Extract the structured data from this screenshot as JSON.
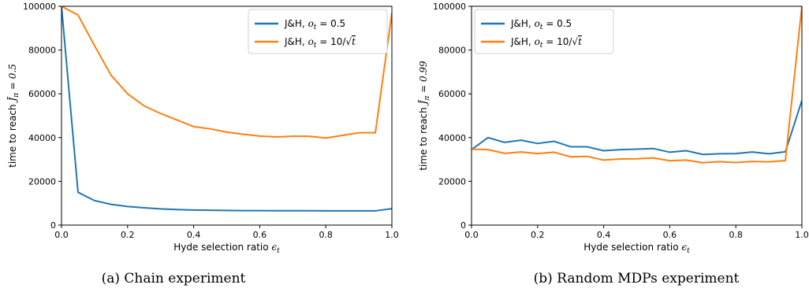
{
  "chart_data": [
    {
      "type": "line",
      "caption": "(a) Chain experiment",
      "xlabel": "Hyde selection ratio ε_t",
      "ylabel": "time to reach J̄_π = 0.5",
      "xlim": [
        0.0,
        1.0
      ],
      "ylim": [
        0,
        100000
      ],
      "xticks": [
        "0.0",
        "0.2",
        "0.4",
        "0.6",
        "0.8",
        "1.0"
      ],
      "yticks": [
        "0",
        "20000",
        "40000",
        "60000",
        "80000",
        "100000"
      ],
      "legend_position": "top-right",
      "grid": false,
      "x": [
        0.0,
        0.05,
        0.1,
        0.15,
        0.2,
        0.25,
        0.3,
        0.35,
        0.4,
        0.45,
        0.5,
        0.55,
        0.6,
        0.65,
        0.7,
        0.75,
        0.8,
        0.85,
        0.9,
        0.95,
        1.0
      ],
      "series": [
        {
          "name": "J&H, o_t = 0.5",
          "color": "#1f77b4",
          "values": [
            100000,
            15000,
            11200,
            9500,
            8500,
            7900,
            7400,
            7100,
            6900,
            6800,
            6700,
            6600,
            6600,
            6550,
            6550,
            6550,
            6500,
            6500,
            6500,
            6500,
            7500
          ]
        },
        {
          "name": "J&H, o_t = 10/√t",
          "color": "#ff7f0e",
          "values": [
            100000,
            96000,
            82000,
            68500,
            60000,
            54500,
            51000,
            48000,
            45000,
            44000,
            42500,
            41500,
            40700,
            40300,
            40600,
            40600,
            39800,
            41000,
            42200,
            42200,
            97000
          ]
        }
      ]
    },
    {
      "type": "line",
      "caption": "(b) Random MDPs experiment",
      "xlabel": "Hyde selection ratio ε_t",
      "ylabel": "time to reach J̄_π = 0.99",
      "xlim": [
        0.0,
        1.0
      ],
      "ylim": [
        0,
        100000
      ],
      "xticks": [
        "0.0",
        "0.2",
        "0.4",
        "0.6",
        "0.8",
        "1.0"
      ],
      "yticks": [
        "0",
        "20000",
        "40000",
        "60000",
        "80000",
        "100000"
      ],
      "legend_position": "top-left",
      "grid": false,
      "x": [
        0.0,
        0.05,
        0.1,
        0.15,
        0.2,
        0.25,
        0.3,
        0.35,
        0.4,
        0.45,
        0.5,
        0.55,
        0.6,
        0.65,
        0.7,
        0.75,
        0.8,
        0.85,
        0.9,
        0.95,
        1.0
      ],
      "series": [
        {
          "name": "J&H, o_t = 0.5",
          "color": "#1f77b4",
          "values": [
            34500,
            40000,
            37800,
            38800,
            37300,
            38300,
            35800,
            35800,
            34000,
            34500,
            34700,
            35000,
            33300,
            34000,
            32300,
            32600,
            32700,
            33400,
            32600,
            33500,
            57000
          ]
        },
        {
          "name": "J&H, o_t = 10/√t",
          "color": "#ff7f0e",
          "values": [
            34700,
            34500,
            32800,
            33400,
            32700,
            33300,
            31200,
            31400,
            29700,
            30200,
            30300,
            30700,
            29400,
            29700,
            28500,
            29000,
            28600,
            29100,
            28900,
            29500,
            100000
          ]
        }
      ]
    }
  ]
}
